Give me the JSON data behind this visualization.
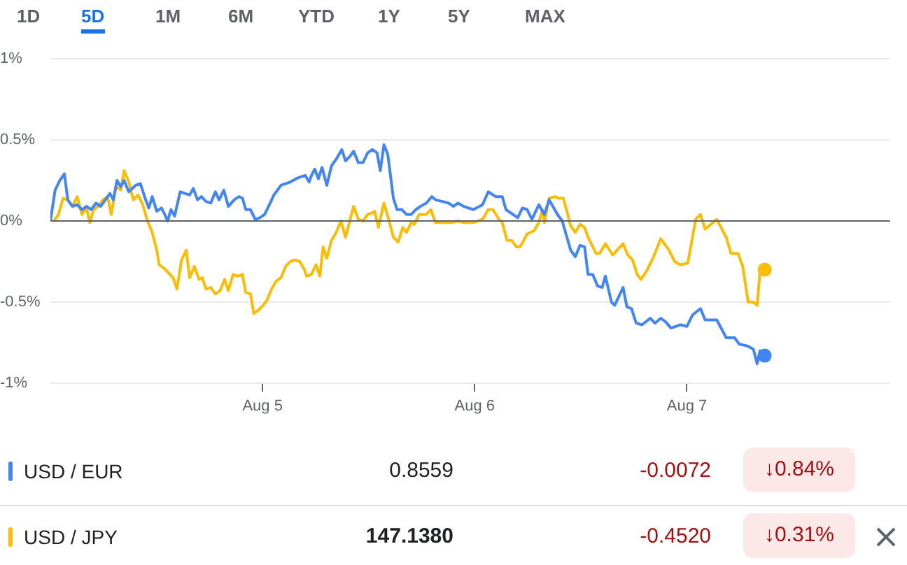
{
  "chart_data": {
    "type": "line",
    "xlim": [
      "--08-04T00:00",
      "--08-07T23:00"
    ],
    "xticks": [
      {
        "value": "--08-05",
        "label": "Aug 5"
      },
      {
        "value": "--08-06",
        "label": "Aug 6"
      },
      {
        "value": "--08-07",
        "label": "Aug 7"
      }
    ],
    "ylim": [
      -1,
      1
    ],
    "yticks": [
      {
        "value": -1,
        "label": "-1%"
      },
      {
        "value": -0.5,
        "label": "-0.5%"
      },
      {
        "value": 0,
        "label": "0%"
      },
      {
        "value": 0.5,
        "label": "0.5%"
      },
      {
        "value": 1,
        "label": "1%"
      }
    ],
    "grid": "y",
    "legend": "bottom",
    "ref_lines": [
      {
        "axis": "y",
        "value": 0,
        "color": "#5f6368"
      }
    ],
    "series": [
      {
        "name": "USD / EUR",
        "color": "#4285f4",
        "x": [
          "--08-04T00:00",
          "--08-04T00:32",
          "--08-04T01:04",
          "--08-04T01:35",
          "--08-04T01:58",
          "--08-04T02:30",
          "--08-04T03:02",
          "--08-04T03:34",
          "--08-04T04:05",
          "--08-04T04:37",
          "--08-04T05:09",
          "--08-04T05:41",
          "--08-04T06:13",
          "--08-04T06:44",
          "--08-04T07:07",
          "--08-04T07:32",
          "--08-04T07:57",
          "--08-04T08:20",
          "--08-04T08:52",
          "--08-04T09:39",
          "--08-04T10:11",
          "--08-04T10:43",
          "--08-04T11:08",
          "--08-04T11:31",
          "--08-04T12:02",
          "--08-04T12:34",
          "--08-04T12:56",
          "--08-04T13:16",
          "--08-04T13:38",
          "--08-04T14:03",
          "--08-04T14:41",
          "--08-04T15:13",
          "--08-04T15:45",
          "--08-04T16:10",
          "--08-04T16:39",
          "--08-04T17:05",
          "--08-04T17:36",
          "--08-04T18:08",
          "--08-04T18:40",
          "--08-04T19:05",
          "--08-04T19:37",
          "--08-04T20:08",
          "--08-04T20:47",
          "--08-04T21:19",
          "--08-04T21:44",
          "--08-04T22:06",
          "--08-04T22:38",
          "--08-04T23:10",
          "--08-04T23:42",
          "--08-05T00:14",
          "--08-05T00:46",
          "--08-05T01:17",
          "--08-05T02:05",
          "--08-05T02:37",
          "--08-05T03:08",
          "--08-05T03:47",
          "--08-05T04:12",
          "--08-05T04:50",
          "--08-05T05:16",
          "--08-05T05:32",
          "--08-05T05:54",
          "--08-05T06:19",
          "--08-05T06:44",
          "--08-05T07:16",
          "--08-05T07:48",
          "--08-05T08:26",
          "--08-05T08:58",
          "--08-05T09:23",
          "--08-05T09:55",
          "--08-05T10:18",
          "--08-05T10:50",
          "--08-05T11:22",
          "--08-05T11:53",
          "--08-05T12:25",
          "--08-05T12:57",
          "--08-05T13:19",
          "--08-05T13:44",
          "--08-05T14:10",
          "--08-05T14:48",
          "--08-05T15:13",
          "--08-05T15:45",
          "--08-05T16:17",
          "--08-05T16:49",
          "--08-05T17:20",
          "--08-05T17:52",
          "--08-05T18:31",
          "--08-05T19:09",
          "--08-05T19:34",
          "--08-05T20:22",
          "--08-05T21:03",
          "--08-05T21:35",
          "--08-05T22:07",
          "--08-05T22:45",
          "--08-05T23:50",
          "--08-06T00:53",
          "--08-06T01:32",
          "--08-06T02:22",
          "--08-06T03:07",
          "--08-06T03:32",
          "--08-06T04:52",
          "--08-06T05:24",
          "--08-06T05:56",
          "--08-06T06:28",
          "--08-06T07:15",
          "--08-06T07:53",
          "--08-06T08:25",
          "--08-06T09:22",
          "--08-06T09:54",
          "--08-06T10:51",
          "--08-06T11:23",
          "--08-06T11:55",
          "--08-06T12:26",
          "--08-06T12:49",
          "--08-06T13:21",
          "--08-06T13:53",
          "--08-06T14:25",
          "--08-06T14:47",
          "--08-06T15:28",
          "--08-06T15:50",
          "--08-06T16:47",
          "--08-06T17:13",
          "--08-06T17:44",
          "--08-06T18:16",
          "--08-06T18:55",
          "--08-06T19:52",
          "--08-06T20:23",
          "--08-06T21:02",
          "--08-06T21:34",
          "--08-06T22:12",
          "--08-06T22:44",
          "--08-06T23:16",
          "--08-07T00:00",
          "--08-07T00:38",
          "--08-07T01:32",
          "--08-07T02:04",
          "--08-07T03:23",
          "--08-07T04:27",
          "--08-07T05:24",
          "--08-07T05:56",
          "--08-07T06:50",
          "--08-07T07:31",
          "--08-07T07:57",
          "--08-07T08:16",
          "--08-07T08:48"
        ],
        "values": [
          0,
          0.19,
          0.25,
          0.29,
          0.13,
          0.09,
          0.1,
          0.07,
          0.09,
          0.07,
          0.11,
          0.09,
          0.13,
          0.17,
          0.13,
          0.25,
          0.21,
          0.25,
          0.18,
          0.22,
          0.23,
          0.14,
          0.08,
          0.15,
          0.06,
          0.08,
          0.04,
          0,
          0.07,
          0.03,
          0.18,
          0.17,
          0.16,
          0.2,
          0.13,
          0.15,
          0.12,
          0.11,
          0.18,
          0.13,
          0.19,
          0.09,
          0.13,
          0.15,
          0.14,
          0.07,
          0.07,
          0.01,
          0.02,
          0.04,
          0.1,
          0.16,
          0.22,
          0.23,
          0.24,
          0.26,
          0.27,
          0.28,
          0.24,
          0.28,
          0.32,
          0.26,
          0.33,
          0.22,
          0.34,
          0.39,
          0.44,
          0.37,
          0.4,
          0.43,
          0.36,
          0.36,
          0.42,
          0.44,
          0.42,
          0.31,
          0.47,
          0.41,
          0.14,
          0.07,
          0.07,
          0.04,
          0.04,
          0.07,
          0.09,
          0.11,
          0.15,
          0.13,
          0.12,
          0.11,
          0.09,
          0.11,
          0.09,
          0.07,
          0.1,
          0.18,
          0.15,
          0.15,
          0.07,
          0.02,
          0.08,
          0.07,
          0.01,
          0.1,
          0.04,
          0.13,
          0.04,
          0,
          -0.18,
          -0.22,
          -0.15,
          -0.16,
          -0.33,
          -0.33,
          -0.4,
          -0.41,
          -0.34,
          -0.5,
          -0.52,
          -0.41,
          -0.53,
          -0.54,
          -0.63,
          -0.64,
          -0.6,
          -0.63,
          -0.6,
          -0.62,
          -0.66,
          -0.65,
          -0.64,
          -0.65,
          -0.58,
          -0.54,
          -0.61,
          -0.61,
          -0.72,
          -0.72,
          -0.76,
          -0.77,
          -0.79,
          -0.88,
          -0.8,
          -0.83
        ]
      },
      {
        "name": "USD / JPY",
        "color": "#fbbc04",
        "x": [
          "--08-04T00:23",
          "--08-04T00:55",
          "--08-04T01:26",
          "--08-04T01:58",
          "--08-04T02:30",
          "--08-04T03:02",
          "--08-04T03:34",
          "--08-04T04:05",
          "--08-04T04:28",
          "--08-04T04:53",
          "--08-04T05:25",
          "--08-04T05:56",
          "--08-04T06:28",
          "--08-04T06:53",
          "--08-04T07:25",
          "--08-04T07:57",
          "--08-04T08:20",
          "--08-04T08:52",
          "--08-04T09:23",
          "--08-04T09:55",
          "--08-04T10:27",
          "--08-04T10:59",
          "--08-04T11:31",
          "--08-04T12:02",
          "--08-04T12:18",
          "--08-04T12:50",
          "--08-04T13:22",
          "--08-04T13:53",
          "--08-04T14:19",
          "--08-04T14:50",
          "--08-04T15:22",
          "--08-04T15:45",
          "--08-04T16:17",
          "--08-04T16:49",
          "--08-04T17:11",
          "--08-04T17:36",
          "--08-04T18:08",
          "--08-04T18:40",
          "--08-04T19:11",
          "--08-04T19:43",
          "--08-04T20:08",
          "--08-04T20:40",
          "--08-04T21:12",
          "--08-04T21:44",
          "--08-04T22:06",
          "--08-04T22:38",
          "--08-04T23:00",
          "--08-04T23:32",
          "--08-05T00:04",
          "--08-05T00:29",
          "--08-05T01:01",
          "--08-05T01:33",
          "--08-05T02:05",
          "--08-05T02:37",
          "--08-05T03:08",
          "--08-05T03:40",
          "--08-05T04:12",
          "--08-05T04:44",
          "--08-05T04:59",
          "--08-05T05:31",
          "--08-05T06:03",
          "--08-05T06:29",
          "--08-05T06:51",
          "--08-05T07:16",
          "--08-05T07:48",
          "--08-05T08:20",
          "--08-05T08:52",
          "--08-05T09:23",
          "--08-05T09:55",
          "--08-05T10:18",
          "--08-05T10:50",
          "--08-05T11:22",
          "--08-05T11:53",
          "--08-05T12:25",
          "--08-05T12:41",
          "--08-05T13:06",
          "--08-05T13:44",
          "--08-05T14:16",
          "--08-05T14:48",
          "--08-05T15:20",
          "--08-05T15:52",
          "--08-05T16:17",
          "--08-05T16:49",
          "--08-05T17:11",
          "--08-05T17:43",
          "--08-05T18:31",
          "--08-05T19:02",
          "--08-05T19:34",
          "--08-05T20:38",
          "--08-05T21:26",
          "--08-05T22:07",
          "--08-05T22:45",
          "--08-05T23:50",
          "--08-06T00:53",
          "--08-06T01:32",
          "--08-06T02:04",
          "--08-06T02:45",
          "--08-06T03:07",
          "--08-06T03:39",
          "--08-06T04:11",
          "--08-06T04:43",
          "--08-06T05:08",
          "--08-06T05:56",
          "--08-06T06:43",
          "--08-06T07:15",
          "--08-06T07:40",
          "--08-06T07:53",
          "--08-06T08:25",
          "--08-06T09:07",
          "--08-06T09:29",
          "--08-06T10:01",
          "--08-06T10:32",
          "--08-06T10:51",
          "--08-06T11:23",
          "--08-06T11:55",
          "--08-06T12:26",
          "--08-06T12:49",
          "--08-06T13:43",
          "--08-06T14:08",
          "--08-06T14:47",
          "--08-06T15:37",
          "--08-06T16:16",
          "--08-06T16:47",
          "--08-06T17:19",
          "--08-06T17:51",
          "--08-06T18:23",
          "--08-06T18:48",
          "--08-06T19:26",
          "--08-06T20:14",
          "--08-06T21:02",
          "--08-06T21:59",
          "--08-06T22:37",
          "--08-06T23:16",
          "--08-07T00:06",
          "--08-07T01:00",
          "--08-07T01:32",
          "--08-07T02:04",
          "--08-07T03:23",
          "--08-07T04:27",
          "--08-07T04:59",
          "--08-07T05:47",
          "--08-07T06:19",
          "--08-07T06:56",
          "--08-07T07:31",
          "--08-07T07:57",
          "--08-07T08:16",
          "--08-07T08:48"
        ],
        "values": [
          0,
          0.04,
          0.14,
          0.13,
          0.09,
          0.15,
          0.04,
          0.08,
          -0.01,
          0.07,
          0.09,
          0.13,
          0.15,
          0.04,
          0.21,
          0.19,
          0.31,
          0.24,
          0.13,
          0.16,
          0.1,
          0,
          -0.07,
          -0.18,
          -0.27,
          -0.29,
          -0.32,
          -0.35,
          -0.42,
          -0.24,
          -0.18,
          -0.35,
          -0.28,
          -0.36,
          -0.35,
          -0.42,
          -0.41,
          -0.45,
          -0.43,
          -0.36,
          -0.43,
          -0.33,
          -0.34,
          -0.33,
          -0.44,
          -0.45,
          -0.57,
          -0.55,
          -0.52,
          -0.49,
          -0.42,
          -0.37,
          -0.35,
          -0.28,
          -0.25,
          -0.24,
          -0.25,
          -0.3,
          -0.34,
          -0.33,
          -0.27,
          -0.34,
          -0.16,
          -0.23,
          -0.12,
          -0.07,
          0,
          -0.1,
          0.01,
          0.09,
          0.01,
          0,
          0.04,
          0.05,
          0.06,
          -0.04,
          0.11,
          0.01,
          -0.1,
          -0.13,
          -0.04,
          -0.07,
          -0.01,
          -0.02,
          0.04,
          0.04,
          0.07,
          -0.01,
          -0.01,
          -0.01,
          0,
          -0.01,
          -0.01,
          0.01,
          0.07,
          0.07,
          0.01,
          -0.01,
          -0.12,
          -0.12,
          -0.16,
          -0.16,
          -0.08,
          -0.06,
          -0.01,
          0.07,
          -0.01,
          0.14,
          0.15,
          0.14,
          0.14,
          0.04,
          -0.03,
          -0.07,
          -0.02,
          -0.04,
          -0.1,
          -0.2,
          -0.2,
          -0.14,
          -0.21,
          -0.17,
          -0.14,
          -0.21,
          -0.24,
          -0.33,
          -0.36,
          -0.31,
          -0.22,
          -0.11,
          -0.18,
          -0.25,
          -0.27,
          -0.26,
          0.01,
          0.04,
          -0.05,
          0.01,
          -0.1,
          -0.2,
          -0.2,
          -0.28,
          -0.5,
          -0.5,
          -0.52,
          -0.31,
          -0.3
        ]
      }
    ],
    "annotations": [
      "1D",
      "5D",
      "1M",
      "6M",
      "YTD",
      "1Y",
      "5Y",
      "MAX",
      "0.8559",
      "-0.0072",
      "↓0.84%",
      "147.1380",
      "-0.4520",
      "↓0.31%"
    ]
  }
}
